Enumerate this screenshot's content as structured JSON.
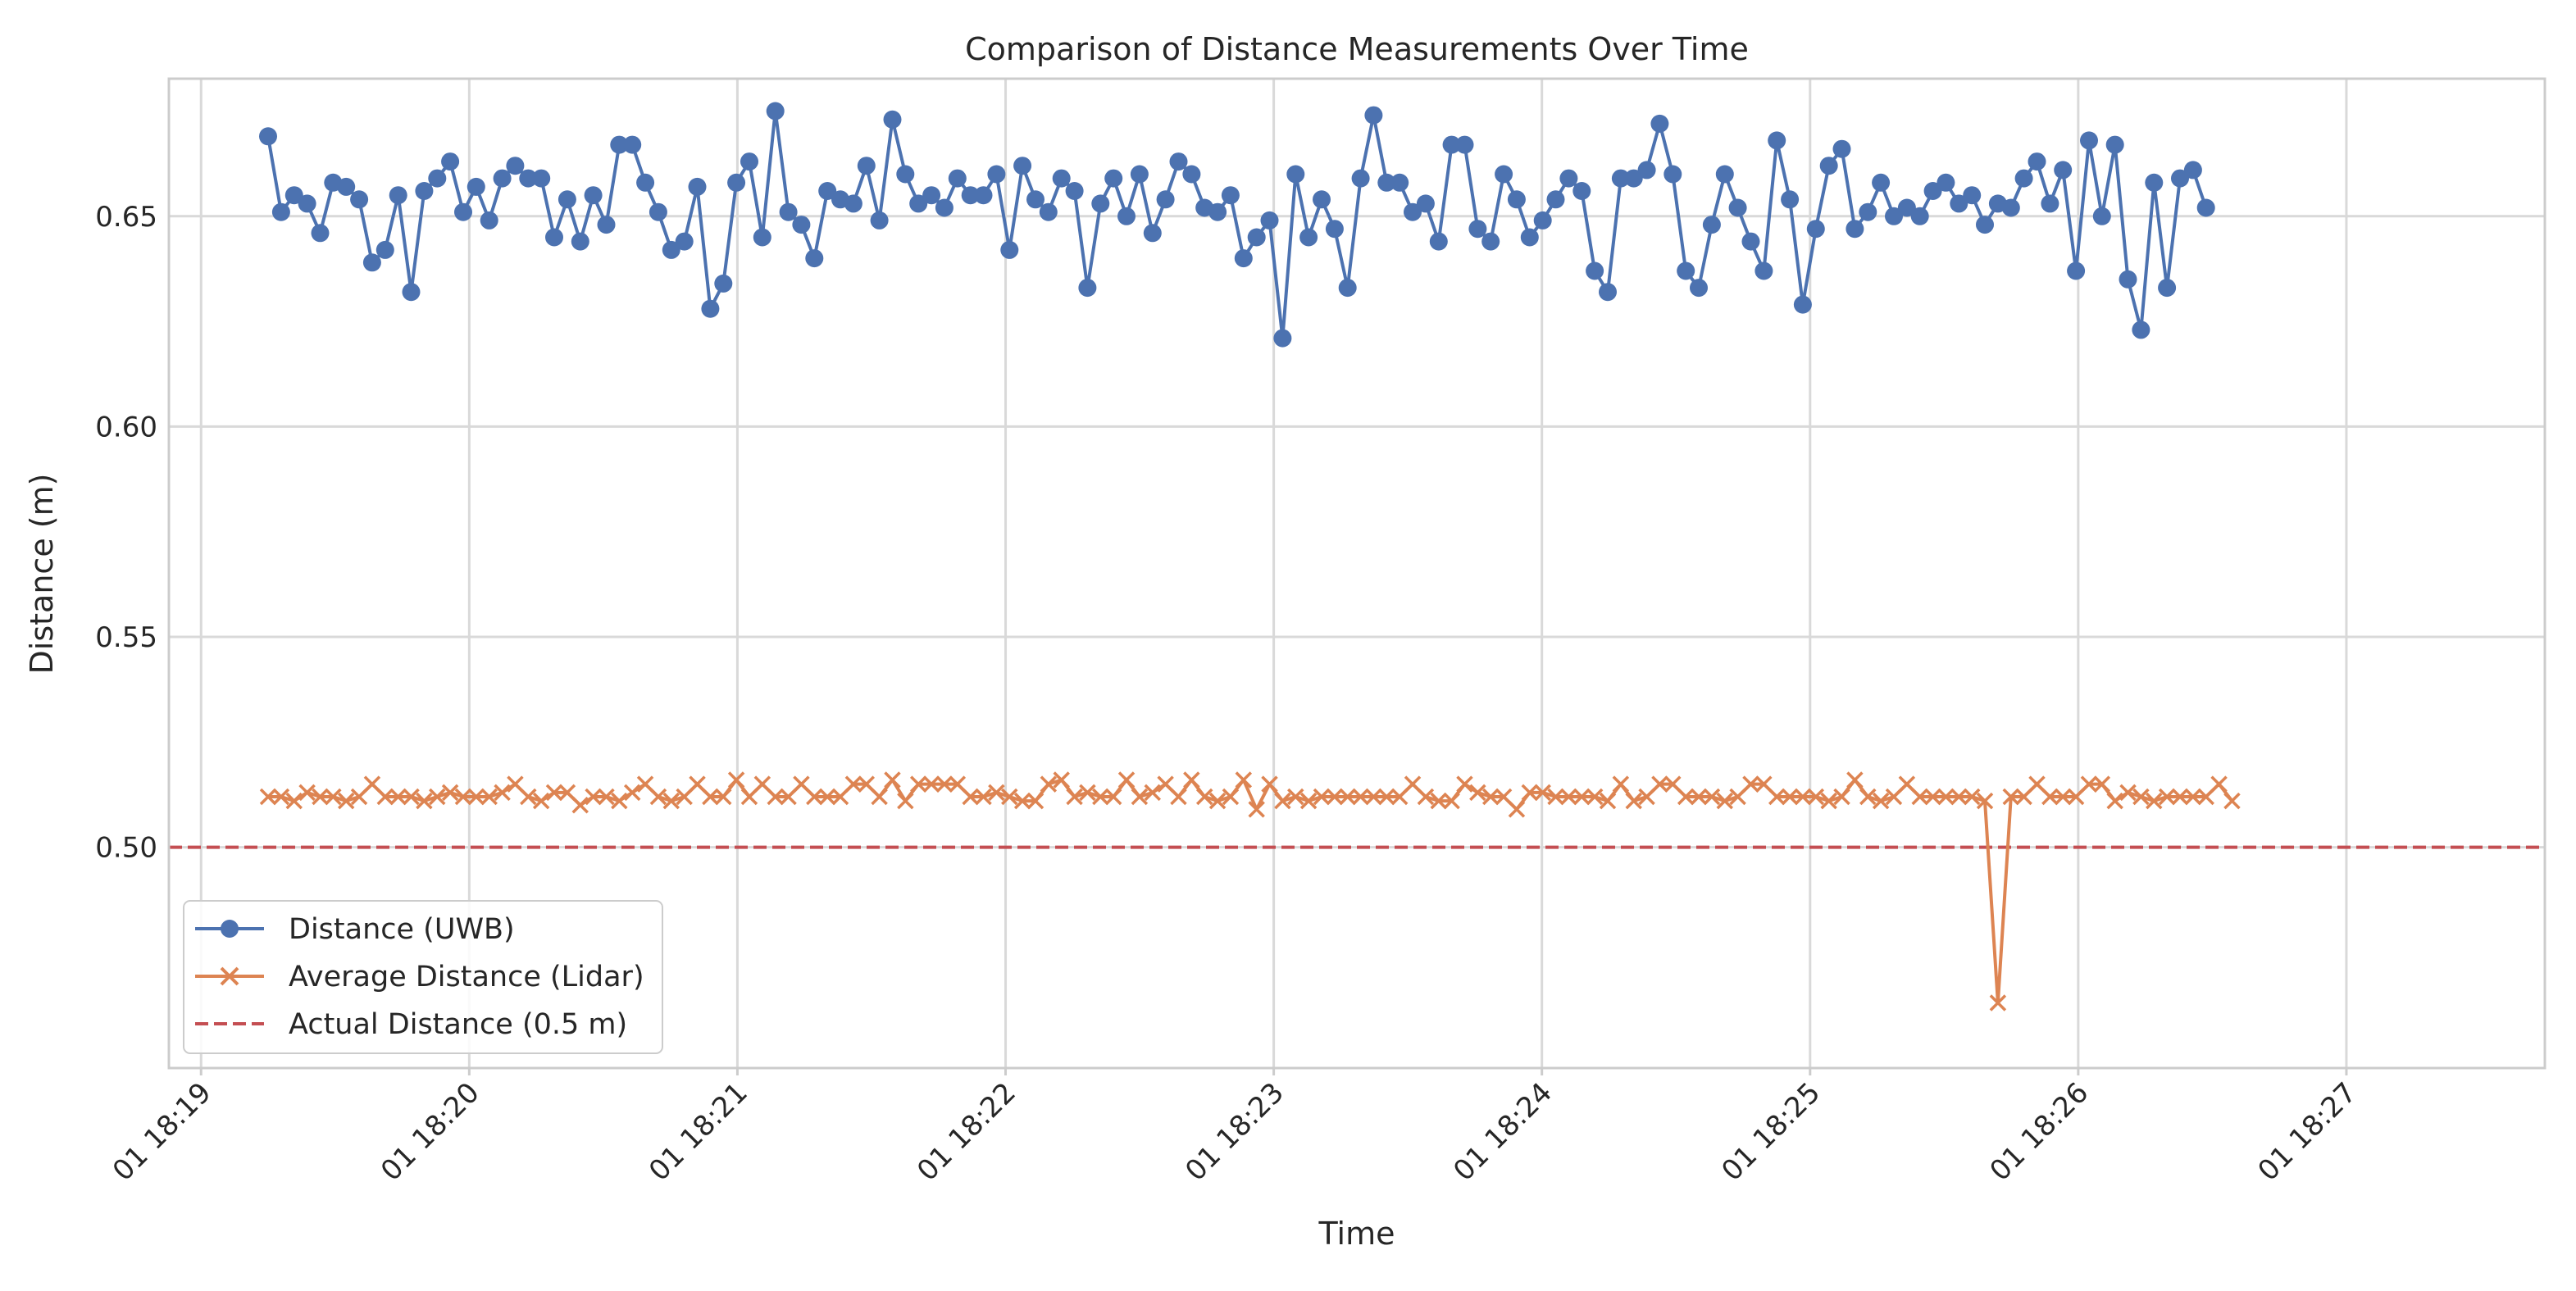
{
  "chart_data": {
    "type": "line",
    "title": "Comparison of Distance Measurements Over Time",
    "xlabel": "Time",
    "ylabel": "Distance (m)",
    "xlim": [
      -0.12,
      8.74
    ],
    "ylim": [
      0.4475,
      0.6827
    ],
    "x_unit": "minutes since 01 18:19",
    "x_tick_values": [
      0,
      1,
      2,
      3,
      4,
      5,
      6,
      7,
      8
    ],
    "x_tick_labels": [
      "01 18:19",
      "01 18:20",
      "01 18:21",
      "01 18:22",
      "01 18:23",
      "01 18:24",
      "01 18:25",
      "01 18:26",
      "01 18:27"
    ],
    "y_tick_values": [
      0.5,
      0.55,
      0.6,
      0.65
    ],
    "y_tick_labels": [
      "0.50",
      "0.55",
      "0.60",
      "0.65"
    ],
    "grid": true,
    "legend_position": "lower-left",
    "colors": {
      "uwb": "#4c72b0",
      "lidar": "#dd8452",
      "actual": "#c44e52",
      "grid": "#d9d9d9",
      "frame": "#cccccc"
    },
    "series": [
      {
        "name": "Distance (UWB)",
        "marker": "circle",
        "x_start": 0.25,
        "x_step": 0.0485,
        "values": [
          0.669,
          0.651,
          0.655,
          0.653,
          0.646,
          0.658,
          0.657,
          0.654,
          0.639,
          0.642,
          0.655,
          0.632,
          0.656,
          0.659,
          0.663,
          0.651,
          0.657,
          0.649,
          0.659,
          0.662,
          0.659,
          0.659,
          0.645,
          0.654,
          0.644,
          0.655,
          0.648,
          0.667,
          0.667,
          0.658,
          0.651,
          0.642,
          0.644,
          0.657,
          0.628,
          0.634,
          0.658,
          0.663,
          0.645,
          0.675,
          0.651,
          0.648,
          0.64,
          0.656,
          0.654,
          0.653,
          0.662,
          0.649,
          0.673,
          0.66,
          0.653,
          0.655,
          0.652,
          0.659,
          0.655,
          0.655,
          0.66,
          0.642,
          0.662,
          0.654,
          0.651,
          0.659,
          0.656,
          0.633,
          0.653,
          0.659,
          0.65,
          0.66,
          0.646,
          0.654,
          0.663,
          0.66,
          0.652,
          0.651,
          0.655,
          0.64,
          0.645,
          0.649,
          0.621,
          0.66,
          0.645,
          0.654,
          0.647,
          0.633,
          0.659,
          0.674,
          0.658,
          0.658,
          0.651,
          0.653,
          0.644,
          0.667,
          0.667,
          0.647,
          0.644,
          0.66,
          0.654,
          0.645,
          0.649,
          0.654,
          0.659,
          0.656,
          0.637,
          0.632,
          0.659,
          0.659,
          0.661,
          0.672,
          0.66,
          0.637,
          0.633,
          0.648,
          0.66,
          0.652,
          0.644,
          0.637,
          0.668,
          0.654,
          0.629,
          0.647,
          0.662,
          0.666,
          0.647,
          0.651,
          0.658,
          0.65,
          0.652,
          0.65,
          0.656,
          0.658,
          0.653,
          0.655,
          0.648,
          0.653,
          0.652,
          0.659,
          0.663,
          0.653,
          0.661,
          0.637,
          0.668,
          0.65,
          0.667,
          0.635,
          0.623,
          0.658,
          0.633,
          0.659,
          0.661,
          0.652
        ]
      },
      {
        "name": "Average Distance (Lidar)",
        "marker": "x",
        "x_start": 0.25,
        "x_step": 0.0485,
        "values": [
          0.512,
          0.512,
          0.511,
          0.513,
          0.512,
          0.512,
          0.511,
          0.512,
          0.515,
          0.512,
          0.512,
          0.512,
          0.511,
          0.512,
          0.513,
          0.512,
          0.512,
          0.512,
          0.513,
          0.515,
          0.512,
          0.511,
          0.513,
          0.513,
          0.51,
          0.512,
          0.512,
          0.511,
          0.513,
          0.515,
          0.512,
          0.511,
          0.512,
          0.515,
          0.512,
          0.512,
          0.516,
          0.512,
          0.515,
          0.512,
          0.512,
          0.515,
          0.512,
          0.512,
          0.512,
          0.515,
          0.515,
          0.512,
          0.516,
          0.511,
          0.515,
          0.515,
          0.515,
          0.515,
          0.512,
          0.512,
          0.513,
          0.512,
          0.511,
          0.511,
          0.515,
          0.516,
          0.512,
          0.513,
          0.512,
          0.512,
          0.516,
          0.512,
          0.513,
          0.515,
          0.512,
          0.516,
          0.512,
          0.511,
          0.512,
          0.516,
          0.509,
          0.515,
          0.511,
          0.512,
          0.511,
          0.512,
          0.512,
          0.512,
          0.512,
          0.512,
          0.512,
          0.512,
          0.515,
          0.512,
          0.511,
          0.511,
          0.515,
          0.513,
          0.512,
          0.512,
          0.509,
          0.513,
          0.513,
          0.512,
          0.512,
          0.512,
          0.512,
          0.511,
          0.515,
          0.511,
          0.512,
          0.515,
          0.515,
          0.512,
          0.512,
          0.512,
          0.511,
          0.512,
          0.515,
          0.515,
          0.512,
          0.512,
          0.512,
          0.512,
          0.511,
          0.512,
          0.516,
          0.512,
          0.511,
          0.512,
          0.515,
          0.512,
          0.512,
          0.512,
          0.512,
          0.512,
          0.511,
          0.463,
          0.512,
          0.512,
          0.515,
          0.512,
          0.512,
          0.512,
          0.515,
          0.515,
          0.511,
          0.513,
          0.512,
          0.511,
          0.512,
          0.512,
          0.512,
          0.512,
          0.515,
          0.511
        ]
      },
      {
        "name": "Actual Distance (0.5 m)",
        "style": "dashed",
        "constant": 0.5
      }
    ]
  }
}
